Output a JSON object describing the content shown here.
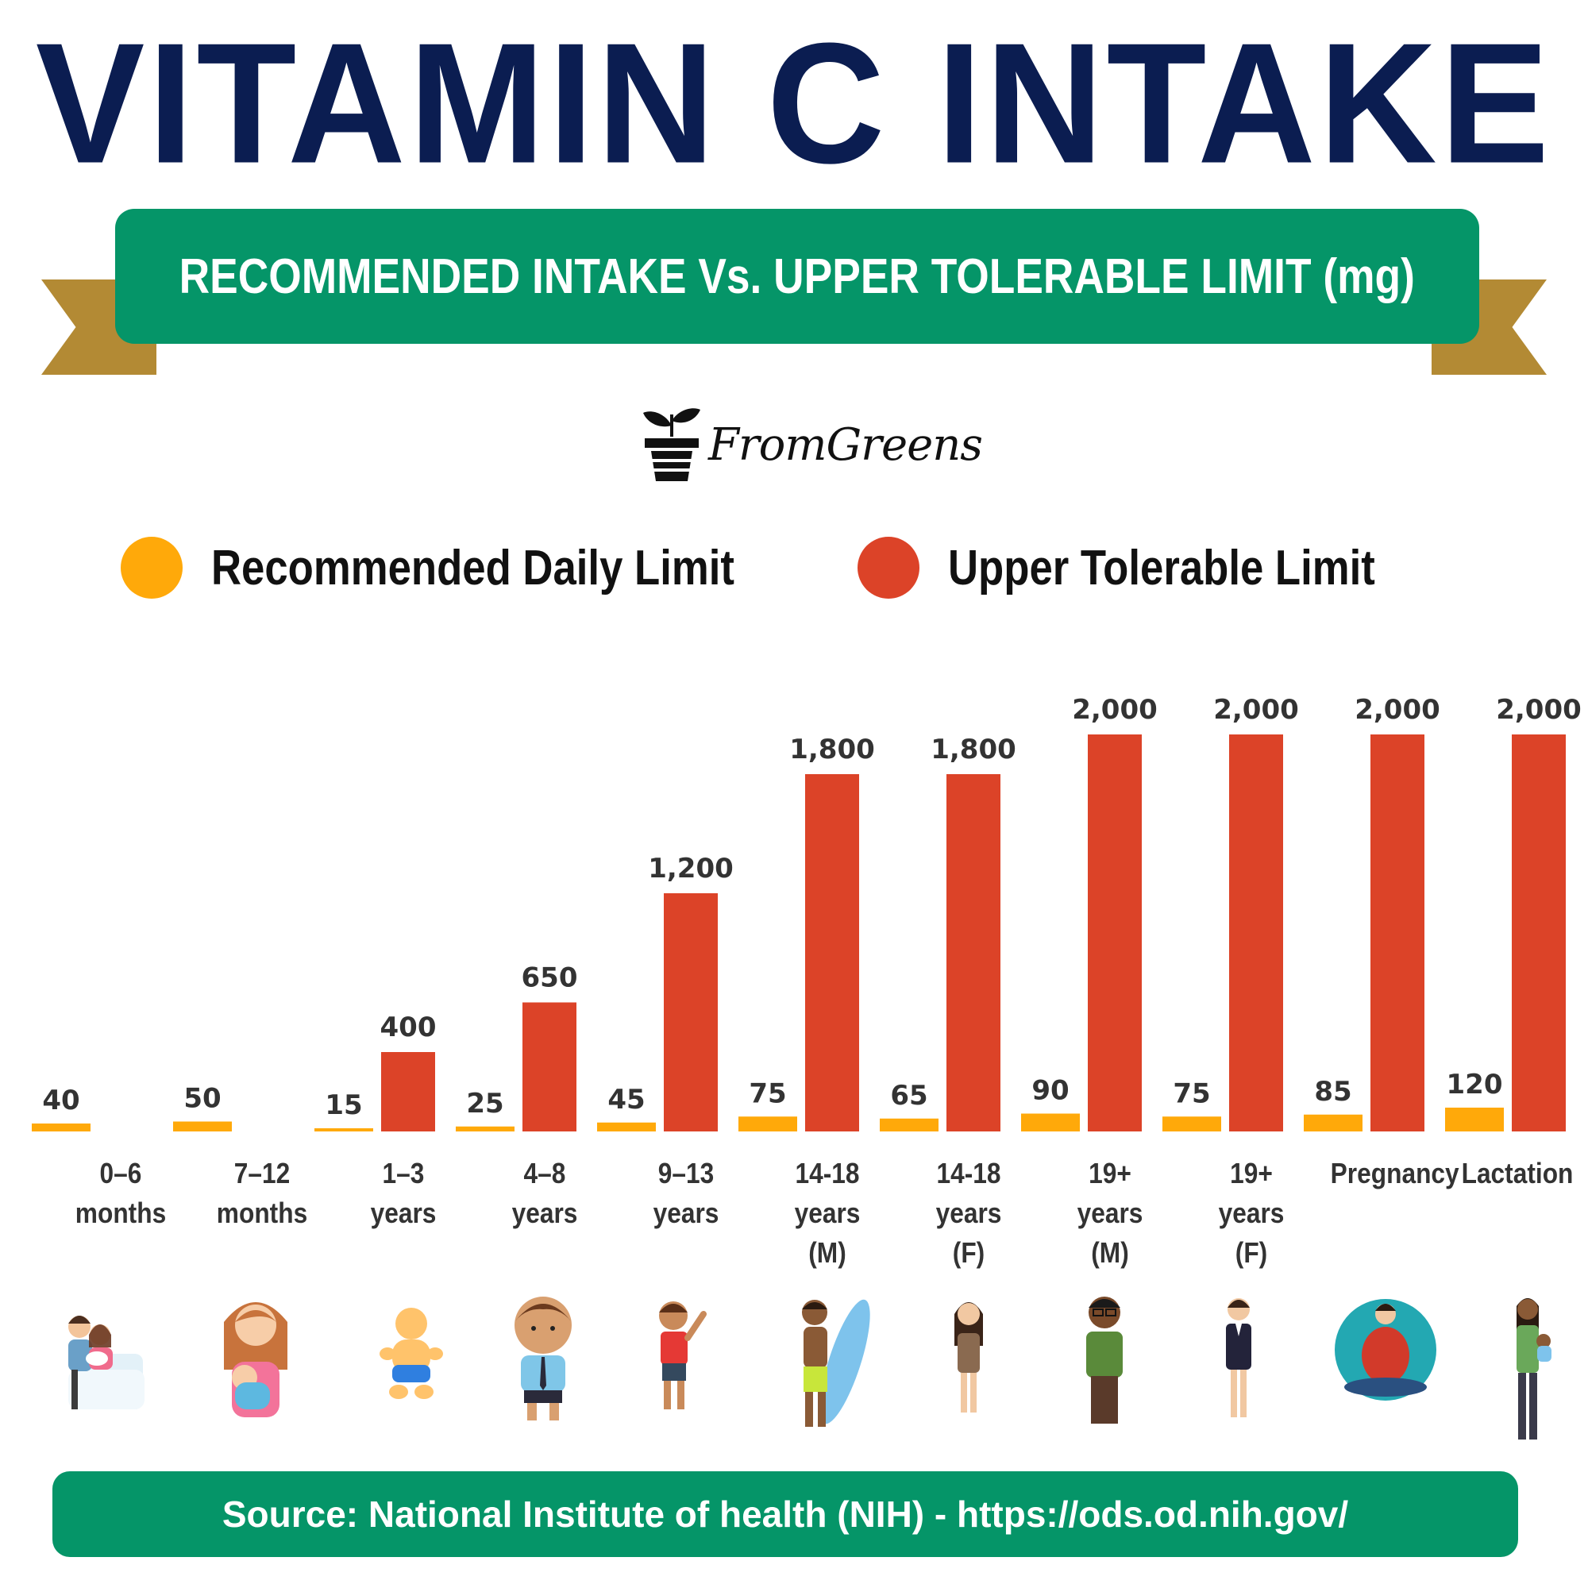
{
  "title": "VITAMIN C INTAKE",
  "banner": "RECOMMENDED INTAKE Vs. UPPER TOLERABLE LIMIT (mg)",
  "logo": {
    "text": "FromGreens",
    "icon": "plant-pot-icon"
  },
  "legend": {
    "recommended": {
      "label": "Recommended Daily Limit",
      "color": "#FFA90A"
    },
    "upper": {
      "label": "Upper Tolerable Limit",
      "color": "#DC4328"
    }
  },
  "chart_data": {
    "type": "bar",
    "title": "VITAMIN C INTAKE",
    "ylabel": "mg",
    "categories": [
      [
        "0–6",
        "months"
      ],
      [
        "7–12",
        "months"
      ],
      [
        "1–3",
        "years"
      ],
      [
        "4–8",
        "years"
      ],
      [
        "9–13",
        "years"
      ],
      [
        "14-18",
        "years",
        "(M)"
      ],
      [
        "14-18",
        "years",
        "(F)"
      ],
      [
        "19+",
        "years",
        "(M)"
      ],
      [
        "19+",
        "years",
        "(F)"
      ],
      [
        "Pregnancy"
      ],
      [
        "Lactation"
      ]
    ],
    "series": [
      {
        "name": "Recommended Daily Limit",
        "color": "#FFA90A",
        "values": [
          40,
          50,
          15,
          25,
          45,
          75,
          65,
          90,
          75,
          85,
          120
        ],
        "labels": [
          "40",
          "50",
          "15",
          "25",
          "45",
          "75",
          "65",
          "90",
          "75",
          "85",
          "120"
        ]
      },
      {
        "name": "Upper Tolerable Limit",
        "color": "#DC4328",
        "values": [
          null,
          null,
          400,
          650,
          1200,
          1800,
          1800,
          2000,
          2000,
          2000,
          2000
        ],
        "labels": [
          null,
          null,
          "400",
          "650",
          "1,200",
          "1,800",
          "1,800",
          "2,000",
          "2,000",
          "2,000",
          "2,000"
        ]
      }
    ],
    "ylim": [
      0,
      2000
    ]
  },
  "people": [
    "parents-with-newborn-icon",
    "mother-holding-baby-icon",
    "toddler-icon",
    "schoolboy-icon",
    "waving-boy-icon",
    "teen-surfer-icon",
    "teen-girl-icon",
    "man-with-glasses-icon",
    "businesswoman-icon",
    "pregnant-woman-icon",
    "mother-carrying-baby-icon"
  ],
  "footer": "Source: National Institute of health (NIH) - https://ods.od.nih.gov/"
}
